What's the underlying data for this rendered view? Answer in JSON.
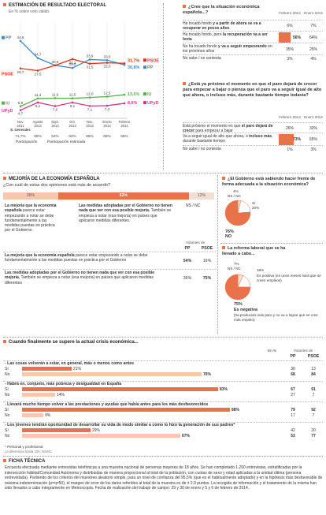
{
  "election": {
    "title": "ESTIMACIÓN DE RESULTADO ELECTORAL",
    "subtitle": "En % sobre voto válido.",
    "legend": [
      {
        "party": "PSOE",
        "value": "31,7%",
        "color": "#e0301e"
      },
      {
        "party": "PP",
        "value": "30,8%",
        "color": "#3a8bd0"
      },
      {
        "party": "IU",
        "value": "13,6%",
        "color": "#59b14a"
      },
      {
        "party": "UPyD",
        "value": "8,6%",
        "color": "#d13a8a"
      }
    ],
    "left_labels": {
      "pp": "PP",
      "psoe": "PSOE",
      "iu": "IU",
      "upyd": "UPyD"
    },
    "participation_label": "Participación",
    "participation_est_label": "Participación estimada",
    "participation_values": [
      "71,7%",
      "65%",
      "62%",
      "62%",
      "65%",
      "65%",
      "65%"
    ]
  },
  "chart_data": {
    "type": "line",
    "title": "ESTIMACIÓN DE RESULTADO ELECTORAL",
    "subtitle": "En % sobre voto válido.",
    "x": [
      "Nov. 2011 E. Generales",
      "Agosto 2013",
      "Sept. 2013",
      "Oct. 2013",
      "Nov. 2013",
      "Enero 2014",
      "Febrero 2014"
    ],
    "series": [
      {
        "name": "PP",
        "values": [
          44.6,
          34.7,
          30.5,
          29.0,
          33.9,
          33.5,
          30.8
        ],
        "color": "#3a8bd0"
      },
      {
        "name": "PSOE",
        "values": [
          28.7,
          27.5,
          30.5,
          34.1,
          31.5,
          32.0,
          31.7
        ],
        "color": "#e0301e"
      },
      {
        "name": "IU",
        "values": [
          6.9,
          11.4,
          11.6,
          11.5,
          12.0,
          12.5,
          13.6
        ],
        "color": "#59b14a"
      },
      {
        "name": "UPyD",
        "values": [
          4.7,
          9.1,
          7.0,
          9.1,
          7.1,
          7.3,
          8.6
        ],
        "color": "#d13a8a"
      }
    ],
    "point_labels": {
      "PP": [
        "44,6",
        "34,7",
        "30,5",
        "29,0",
        "33,9",
        "33,5",
        ""
      ],
      "PSOE": [
        "28,7",
        "27,5",
        "",
        "34,1",
        "31,5",
        "32,0",
        ""
      ],
      "IU": [
        "6,9",
        "11,4",
        "11,6",
        "11,5",
        "12,0",
        "12,5",
        ""
      ],
      "UPyD": [
        "4,7",
        "9,1",
        "7,0",
        "9,1",
        "7,1",
        "7,3",
        ""
      ]
    },
    "ylim": [
      0,
      50
    ]
  },
  "q1": {
    "title": "¿Cree que la situación económica española...?",
    "col1": "Febrero 2014",
    "col2": "Enero 2014",
    "rows": [
      {
        "pre": "Ha tocado fondo ",
        "bold": "y a partir de ahora se va a recuperar en pocos años",
        "post": "",
        "v1": "6%",
        "v2": "7%",
        "n1": 6,
        "hl": false
      },
      {
        "pre": "Ha tocado fondo, pero ",
        "bold": "la recuperación va a ser lenta",
        "post": "",
        "v1": "56%",
        "v2": "64%",
        "n1": 56,
        "hl": true
      },
      {
        "pre": "No ha tocado fondo ",
        "bold": "y va a seguir empeorando",
        "post": " en los próximos años",
        "v1": "35%",
        "v2": "25%",
        "n1": 35,
        "hl": false
      },
      {
        "pre": "No sabe / no contesta",
        "bold": "",
        "post": "",
        "v1": "3%",
        "v2": "4%",
        "n1": 3,
        "hl": false
      }
    ]
  },
  "q2": {
    "title": "¿Está ya próximo el momento en que el paro dejará de crecer para empezar a bajar o piensa que el paro va a seguir igual de alto que ahora, o incluso más, durante bastante tiempo todavía?",
    "col1": "Febrero 2014",
    "col2": "Enero 2014",
    "rows": [
      {
        "pre": "Está próximo el momento en que ",
        "bold": "el paro dejará de crecer",
        "post": " para empezar a bajar",
        "v1": "26%",
        "v2": "32%",
        "n1": 26,
        "hl": false
      },
      {
        "pre": "Va a seguir igual de alto que ahora, o ",
        "bold": "incluso más",
        "post": ", durante bastante tiempo",
        "v1": "73%",
        "v2": "65%",
        "n1": 73,
        "hl": true
      },
      {
        "pre": "No sabe / no contesta",
        "bold": "",
        "post": "",
        "v1": "1%",
        "v2": "3%",
        "n1": 1,
        "hl": false
      }
    ]
  },
  "mejora": {
    "title": "MEJORÍA DE LA ECONOMÍA ESPAÑOLA",
    "question": "¿Con cuál de estas dos opiniones está más de acuerdo?",
    "bar": [
      {
        "label": "26%",
        "value": 26,
        "color": "#f6c8b2"
      },
      {
        "label": "62%",
        "value": 62,
        "color": "#e8734a"
      },
      {
        "label": "12%",
        "value": 12,
        "color": "#f3ded4"
      }
    ],
    "opt1_bold": "La mejoría que la economía española",
    "opt1_rest": " parece estar empezando a notar se debe fundamentalmente a las medidas puestas en práctica por el Gobierno.",
    "opt2_bold": "Las medidas adoptadas por el Gobierno no tienen nada que ver con esa posible mejoría.",
    "opt2_rest": " También se empieza a notar (esa mejoría) en países que aplicaron medidas diferentes.",
    "opt3": "NS / NC",
    "votantes_label": "Votantes de",
    "col_pp": "PP",
    "col_psoe": "PSOE",
    "rows": [
      {
        "bold": "La mejoría que la economía española",
        "rest": " parece estar empezando a notar se debe fundamentalmente a las medidas puestas en práctica por el Gobierno",
        "pp": "54%",
        "psoe": "16%"
      },
      {
        "bold": "Las medidas adoptadas por el Gobierno no tienen nada que ver con esa posible mejoría.",
        "rest": " También se empieza a notar (esa mejoría) en países que aplicaron medidas diferentes",
        "pp": "36%",
        "psoe": "75%"
      }
    ]
  },
  "pie1": {
    "title": "¿El Gobierno está sabiendo hacer frente de forma adecuada a la situación económica?",
    "slices": [
      {
        "label": "4%",
        "value": 4,
        "color": "#f3ded4"
      },
      {
        "label": "20%",
        "value": 20,
        "color": "#ffffff"
      },
      {
        "label": "76%",
        "value": 76,
        "color": "#e8734a"
      }
    ],
    "lbl_nsnc": "NS / NC",
    "lbl_si": "Sí",
    "lbl_no": "NO"
  },
  "pie2": {
    "title": "La reforma laboral que se ha llevado a cabo...",
    "slices": [
      {
        "label": "7%",
        "value": 7,
        "color": "#f3ded4"
      },
      {
        "label": "18%",
        "value": 18,
        "color": "#ffffff"
      },
      {
        "label": "75%",
        "value": 75,
        "color": "#e8734a"
      }
    ],
    "lbl_nsnc": "NS / NC",
    "lbl_pos_pct": "18%",
    "lbl_pos": "Es positiva (en unos meses hará que se creen empleos)",
    "lbl_neg_pct": "75%",
    "lbl_neg": "Es negativa",
    "lbl_neg_sub": "(ha producido más paro y no va a lograr que se cree más empleo)"
  },
  "crisis": {
    "title": "Cuando finalmente se supere la actual crisis económica...",
    "col_pct": "En %",
    "votantes_label": "Votantes de",
    "col_pp": "PP",
    "col_psoe": "PSOE",
    "groups": [
      {
        "q": "Las cosas volverán a estar, en general, más o menos como antes",
        "si": 21,
        "no": 76,
        "si_pp": "30",
        "si_psoe": "13",
        "no_pp": "68",
        "no_psoe": "84"
      },
      {
        "q": "Habrá en, conjunto, más pobreza y desigualdad en España",
        "si": 83,
        "no": 14,
        "si_pp": "67",
        "si_psoe": "91",
        "no_pp": "27",
        "no_psoe": "7"
      },
      {
        "q": "Llevará  mucho tiempo volver a las prestaciones y ayudas que había antes para los más desfavorecidos",
        "si": 88,
        "no": 9,
        "si_pp": "79",
        "si_psoe": "92",
        "no_pp": "17",
        "no_psoe": "7"
      },
      {
        "q": "Los jóvenes tendrán oportunidad de desarrollar su vida de modo similar a como lo hizo la generación de sus padres*",
        "si": 29,
        "no": 67,
        "si_pp": "42",
        "si_psoe": "20",
        "no_pp": "53",
        "no_psoe": "77"
      }
    ],
    "si_label": "Sí",
    "no_label": "No",
    "footnote1": "* Personal y profesional",
    "footnote2": "La diferencia hasta 100: NS/NC"
  },
  "ficha": {
    "title": "FICHA TÉCNICA",
    "text": "Encuesta efectuada mediante entrevistas telefónicas a una muestra nacional de personas mayores de 18 años. Se han completado 1.200 entrevistas, estratificadas por la intersección hábitat/Comunidad Autónoma y distribuidas de manera proporcional al total de la población, con cuotas de sexo y edad aplicadas a la unidad última (persona entrevistada). Partiendo de los criterios del muestreo aleatorio simple, para un nivel de confianza del 95,5% (que es el habitualmente adoptado) y en la hipótesis más desfavorable de máxima indeterminación (p=q=50), el margen de error de los datos referidos al total de la muestra es de ± 2,9 puntos. La recogida de información y el tratamiento de la misma han sido llevados a cabo íntegramente en Metroscopia. Fecha de realización del trabajo de campo: 29 y 30 de enero y 5 y 6 de febrero de 2014."
  }
}
